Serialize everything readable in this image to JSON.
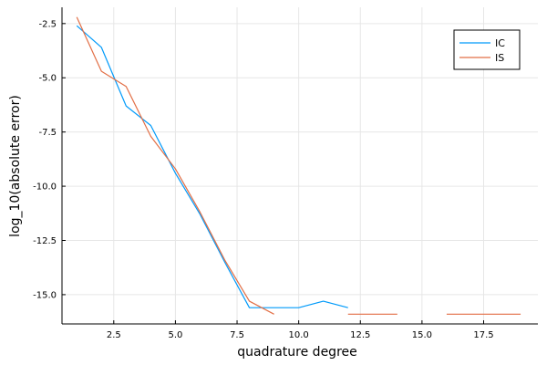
{
  "chart_data": {
    "type": "line",
    "title": "",
    "xlabel": "quadrature degree",
    "ylabel": "log_10(absolute error)",
    "xlim": [
      0.4,
      19.7
    ],
    "ylim": [
      -16.35,
      -1.75
    ],
    "xticks": [
      2.5,
      5.0,
      7.5,
      10.0,
      12.5,
      15.0,
      17.5
    ],
    "xtick_labels": [
      "2.5",
      "5.0",
      "7.5",
      "10.0",
      "12.5",
      "15.0",
      "17.5"
    ],
    "yticks": [
      -2.5,
      -5.0,
      -7.5,
      -10.0,
      -12.5,
      -15.0
    ],
    "ytick_labels": [
      "-2.5",
      "-5.0",
      "-7.5",
      "-10.0",
      "-12.5",
      "-15.0"
    ],
    "grid": true,
    "legend_position": "top-right",
    "series": [
      {
        "name": "IC",
        "color": "#009AFA",
        "points": [
          [
            1,
            -2.6
          ],
          [
            2,
            -3.6
          ],
          [
            3,
            -6.3
          ],
          [
            4,
            -7.2
          ],
          [
            5,
            -9.4
          ],
          [
            6,
            -11.3
          ],
          [
            7,
            -13.5
          ],
          [
            8,
            -15.6
          ],
          [
            9,
            -15.6
          ],
          [
            10,
            -15.6
          ],
          [
            11,
            -15.3
          ],
          [
            12,
            -15.6
          ]
        ]
      },
      {
        "name": "IS",
        "color": "#E26F46",
        "points": [
          [
            1,
            -2.2
          ],
          [
            2,
            -4.7
          ],
          [
            3,
            -5.4
          ],
          [
            4,
            -7.7
          ],
          [
            5,
            -9.2
          ],
          [
            6,
            -11.2
          ],
          [
            7,
            -13.4
          ],
          [
            8,
            -15.3
          ],
          [
            9,
            -15.9
          ],
          null,
          [
            12,
            -15.9
          ],
          [
            13,
            -15.9
          ],
          [
            14,
            -15.9
          ],
          null,
          [
            16,
            -15.9
          ],
          [
            17,
            -15.9
          ],
          [
            18,
            -15.9
          ],
          [
            19,
            -15.9
          ]
        ]
      }
    ]
  }
}
